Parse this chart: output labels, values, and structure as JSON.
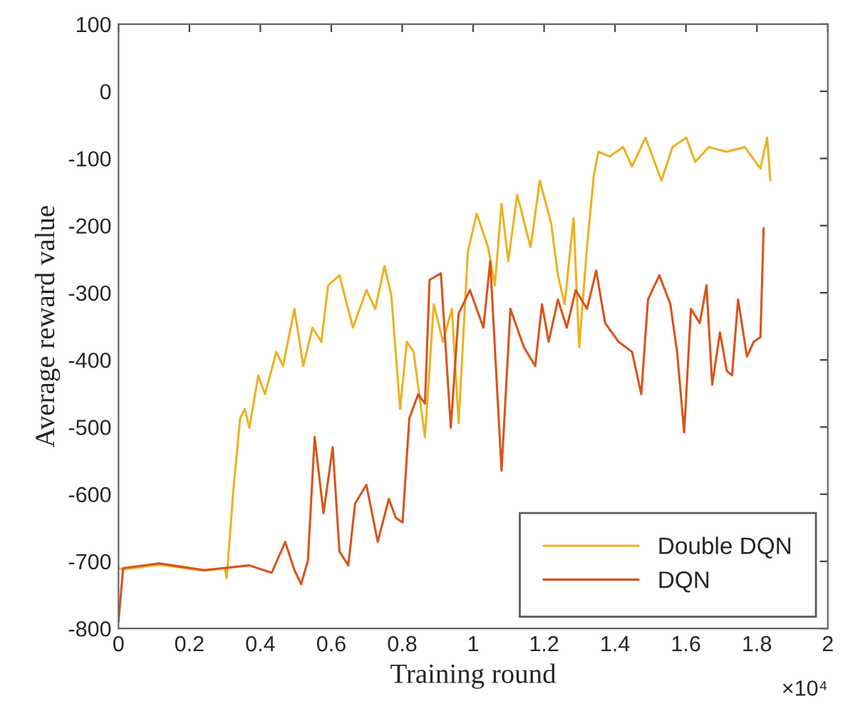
{
  "chart_data": {
    "type": "line",
    "xlabel": "Training round",
    "ylabel": "Average reward value",
    "annotations": [
      "×10⁴"
    ],
    "xlim": [
      0,
      2
    ],
    "xticks": [
      0,
      0.2,
      0.4,
      0.6,
      0.8,
      1,
      1.2,
      1.4,
      1.6,
      1.8,
      2
    ],
    "ylim": [
      -800,
      100
    ],
    "yticks": [
      -800,
      -700,
      -600,
      -500,
      -400,
      -300,
      -200,
      -100,
      0,
      100
    ],
    "grid": false,
    "legend": "bottom right",
    "line_style": "solid",
    "marker": "none",
    "series": [
      {
        "name": "Double DQN",
        "color": "#edb120",
        "x": [
          0,
          0.013,
          0.115,
          0.242,
          0.3,
          0.305,
          0.324,
          0.343,
          0.356,
          0.369,
          0.394,
          0.413,
          0.445,
          0.464,
          0.496,
          0.521,
          0.547,
          0.572,
          0.591,
          0.623,
          0.661,
          0.699,
          0.724,
          0.75,
          0.769,
          0.794,
          0.813,
          0.832,
          0.864,
          0.889,
          0.915,
          0.94,
          0.959,
          0.985,
          1.01,
          1.042,
          1.061,
          1.08,
          1.099,
          1.124,
          1.162,
          1.188,
          1.22,
          1.239,
          1.258,
          1.283,
          1.299,
          1.321,
          1.34,
          1.353,
          1.385,
          1.423,
          1.448,
          1.486,
          1.531,
          1.562,
          1.601,
          1.626,
          1.664,
          1.715,
          1.766,
          1.81,
          1.829,
          1.838
        ],
        "values": [
          -710,
          -712,
          -705,
          -714,
          -710,
          -725,
          -593,
          -487,
          -473,
          -501,
          -423,
          -451,
          -388,
          -409,
          -324,
          -409,
          -352,
          -373,
          -289,
          -274,
          -352,
          -296,
          -324,
          -260,
          -303,
          -473,
          -373,
          -388,
          -515,
          -317,
          -373,
          -324,
          -494,
          -239,
          -182,
          -232,
          -289,
          -168,
          -253,
          -154,
          -232,
          -133,
          -197,
          -274,
          -317,
          -189,
          -381,
          -232,
          -126,
          -90,
          -97,
          -83,
          -112,
          -69,
          -133,
          -83,
          -69,
          -105,
          -83,
          -90,
          -83,
          -115,
          -69,
          -133
        ]
      },
      {
        "name": "DQN",
        "color": "#d95319",
        "x": [
          0,
          0.013,
          0.115,
          0.242,
          0.369,
          0.432,
          0.47,
          0.496,
          0.515,
          0.534,
          0.553,
          0.578,
          0.604,
          0.623,
          0.648,
          0.667,
          0.699,
          0.731,
          0.762,
          0.782,
          0.801,
          0.82,
          0.845,
          0.864,
          0.877,
          0.909,
          0.937,
          0.959,
          0.991,
          1.029,
          1.048,
          1.08,
          1.105,
          1.143,
          1.175,
          1.194,
          1.213,
          1.239,
          1.264,
          1.289,
          1.321,
          1.347,
          1.372,
          1.41,
          1.448,
          1.474,
          1.493,
          1.525,
          1.556,
          1.575,
          1.595,
          1.614,
          1.639,
          1.658,
          1.674,
          1.696,
          1.715,
          1.73,
          1.747,
          1.772,
          1.791,
          1.81,
          1.819
        ],
        "values": [
          -790,
          -710,
          -703,
          -713,
          -706,
          -717,
          -671,
          -713,
          -734,
          -699,
          -515,
          -628,
          -530,
          -685,
          -706,
          -614,
          -586,
          -671,
          -607,
          -635,
          -642,
          -487,
          -451,
          -465,
          -281,
          -271,
          -501,
          -331,
          -296,
          -352,
          -253,
          -565,
          -324,
          -381,
          -409,
          -317,
          -373,
          -310,
          -352,
          -296,
          -324,
          -267,
          -345,
          -373,
          -388,
          -451,
          -310,
          -274,
          -317,
          -388,
          -508,
          -324,
          -345,
          -289,
          -437,
          -359,
          -416,
          -423,
          -310,
          -395,
          -373,
          -366,
          -204
        ]
      }
    ]
  }
}
